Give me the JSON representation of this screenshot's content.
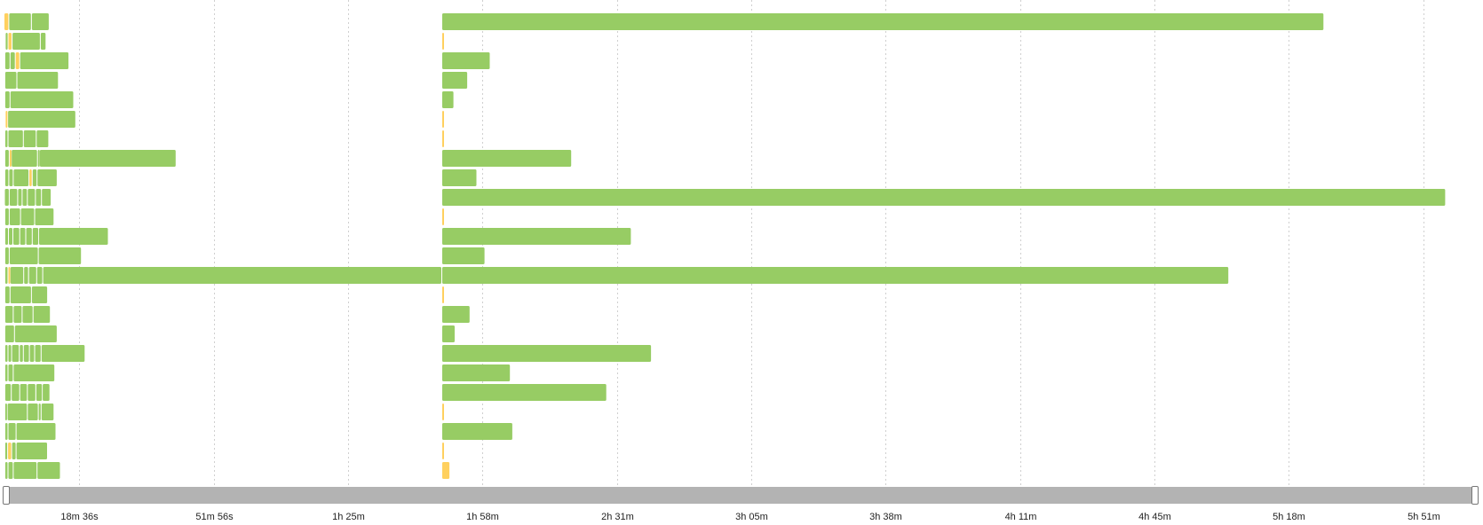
{
  "timeline": {
    "range_minutes": [
      0,
      365
    ],
    "colors": {
      "running": "#97cc64",
      "pending": "#ffd05e",
      "scrollbar": "#b3b3b3",
      "gridline": "#cfcfcf"
    },
    "ticks": [
      {
        "label": "18m 36s",
        "minutes": 18.6
      },
      {
        "label": "51m 56s",
        "minutes": 51.93
      },
      {
        "label": "1h 25m",
        "minutes": 85.27
      },
      {
        "label": "1h 58m",
        "minutes": 118.6
      },
      {
        "label": "2h 31m",
        "minutes": 151.93
      },
      {
        "label": "3h 05m",
        "minutes": 185.27
      },
      {
        "label": "3h 38m",
        "minutes": 218.6
      },
      {
        "label": "4h 11m",
        "minutes": 251.93
      },
      {
        "label": "4h 45m",
        "minutes": 285.27
      },
      {
        "label": "5h 18m",
        "minutes": 318.6
      },
      {
        "label": "5h 51m",
        "minutes": 351.93
      }
    ],
    "rows": [
      {
        "segments": [
          {
            "s": 0,
            "e": 1.2,
            "t": "pending"
          },
          {
            "s": 1.2,
            "e": 6.8,
            "t": "running"
          },
          {
            "s": 6.8,
            "e": 11.2,
            "t": "running"
          },
          {
            "s": 108.6,
            "e": 327.4,
            "t": "running"
          }
        ]
      },
      {
        "segments": [
          {
            "s": 0.3,
            "e": 1.0,
            "t": "running"
          },
          {
            "s": 1.0,
            "e": 2.0,
            "t": "pending"
          },
          {
            "s": 2.0,
            "e": 9.0,
            "t": "running"
          },
          {
            "s": 9.0,
            "e": 10.4,
            "t": "running"
          },
          {
            "s": 108.6,
            "e": 109.1,
            "t": "pending"
          }
        ]
      },
      {
        "segments": [
          {
            "s": 0.2,
            "e": 1.5,
            "t": "running"
          },
          {
            "s": 1.5,
            "e": 2.8,
            "t": "running"
          },
          {
            "s": 2.8,
            "e": 3.9,
            "t": "pending"
          },
          {
            "s": 3.9,
            "e": 16.1,
            "t": "running"
          },
          {
            "s": 108.6,
            "e": 120.6,
            "t": "running"
          }
        ]
      },
      {
        "segments": [
          {
            "s": 0.2,
            "e": 3.2,
            "t": "running"
          },
          {
            "s": 3.2,
            "e": 13.5,
            "t": "running"
          },
          {
            "s": 108.6,
            "e": 115.0,
            "t": "running"
          }
        ]
      },
      {
        "segments": [
          {
            "s": 0.2,
            "e": 1.5,
            "t": "running"
          },
          {
            "s": 1.5,
            "e": 17.3,
            "t": "running"
          },
          {
            "s": 108.6,
            "e": 111.6,
            "t": "running"
          }
        ]
      },
      {
        "segments": [
          {
            "s": 0.3,
            "e": 0.9,
            "t": "pending"
          },
          {
            "s": 0.9,
            "e": 17.8,
            "t": "running"
          },
          {
            "s": 108.6,
            "e": 109.1,
            "t": "pending"
          }
        ]
      },
      {
        "segments": [
          {
            "s": 0.2,
            "e": 1.0,
            "t": "running"
          },
          {
            "s": 1.0,
            "e": 4.8,
            "t": "running"
          },
          {
            "s": 4.8,
            "e": 8.0,
            "t": "running"
          },
          {
            "s": 8.0,
            "e": 11.1,
            "t": "running"
          },
          {
            "s": 108.6,
            "e": 109.1,
            "t": "pending"
          }
        ]
      },
      {
        "segments": [
          {
            "s": 0.2,
            "e": 1.3,
            "t": "running"
          },
          {
            "s": 1.3,
            "e": 1.8,
            "t": "pending"
          },
          {
            "s": 1.8,
            "e": 8.3,
            "t": "running"
          },
          {
            "s": 8.3,
            "e": 8.8,
            "t": "running"
          },
          {
            "s": 8.8,
            "e": 42.7,
            "t": "running"
          },
          {
            "s": 108.6,
            "e": 140.8,
            "t": "running"
          }
        ]
      },
      {
        "segments": [
          {
            "s": 0.2,
            "e": 1.2,
            "t": "running"
          },
          {
            "s": 1.2,
            "e": 2.3,
            "t": "running"
          },
          {
            "s": 2.3,
            "e": 6.2,
            "t": "running"
          },
          {
            "s": 6.2,
            "e": 7.0,
            "t": "pending"
          },
          {
            "s": 7.0,
            "e": 8.2,
            "t": "running"
          },
          {
            "s": 8.2,
            "e": 13.2,
            "t": "running"
          },
          {
            "s": 108.6,
            "e": 117.3,
            "t": "running"
          }
        ]
      },
      {
        "segments": [
          {
            "s": 0.1,
            "e": 1.3,
            "t": "running"
          },
          {
            "s": 1.3,
            "e": 3.4,
            "t": "running"
          },
          {
            "s": 3.4,
            "e": 4.5,
            "t": "running"
          },
          {
            "s": 4.5,
            "e": 5.8,
            "t": "running"
          },
          {
            "s": 5.8,
            "e": 7.8,
            "t": "running"
          },
          {
            "s": 7.8,
            "e": 9.3,
            "t": "running"
          },
          {
            "s": 9.3,
            "e": 11.7,
            "t": "running"
          },
          {
            "s": 108.6,
            "e": 357.6,
            "t": "running"
          }
        ]
      },
      {
        "segments": [
          {
            "s": 0.2,
            "e": 1.3,
            "t": "running"
          },
          {
            "s": 1.3,
            "e": 4.1,
            "t": "running"
          },
          {
            "s": 4.1,
            "e": 7.6,
            "t": "running"
          },
          {
            "s": 7.6,
            "e": 12.4,
            "t": "running"
          },
          {
            "s": 108.6,
            "e": 109.1,
            "t": "pending"
          }
        ]
      },
      {
        "segments": [
          {
            "s": 0.2,
            "e": 1.1,
            "t": "running"
          },
          {
            "s": 1.1,
            "e": 2.2,
            "t": "running"
          },
          {
            "s": 2.2,
            "e": 3.9,
            "t": "running"
          },
          {
            "s": 3.9,
            "e": 5.4,
            "t": "running"
          },
          {
            "s": 5.4,
            "e": 7.0,
            "t": "running"
          },
          {
            "s": 7.0,
            "e": 8.6,
            "t": "running"
          },
          {
            "s": 8.6,
            "e": 25.9,
            "t": "running"
          },
          {
            "s": 108.6,
            "e": 155.6,
            "t": "running"
          }
        ]
      },
      {
        "segments": [
          {
            "s": 0.2,
            "e": 1.3,
            "t": "running"
          },
          {
            "s": 1.3,
            "e": 8.5,
            "t": "running"
          },
          {
            "s": 8.5,
            "e": 19.2,
            "t": "running"
          },
          {
            "s": 108.6,
            "e": 119.3,
            "t": "running"
          }
        ]
      },
      {
        "segments": [
          {
            "s": 0.2,
            "e": 1.0,
            "t": "running"
          },
          {
            "s": 1.0,
            "e": 1.5,
            "t": "pending"
          },
          {
            "s": 1.5,
            "e": 4.9,
            "t": "running"
          },
          {
            "s": 4.9,
            "e": 6.1,
            "t": "running"
          },
          {
            "s": 6.1,
            "e": 8.1,
            "t": "running"
          },
          {
            "s": 8.1,
            "e": 9.6,
            "t": "running"
          },
          {
            "s": 9.6,
            "e": 108.6,
            "t": "running"
          },
          {
            "s": 108.6,
            "e": 303.8,
            "t": "running"
          }
        ]
      },
      {
        "segments": [
          {
            "s": 0.2,
            "e": 1.5,
            "t": "running"
          },
          {
            "s": 1.5,
            "e": 6.8,
            "t": "running"
          },
          {
            "s": 6.8,
            "e": 10.8,
            "t": "running"
          },
          {
            "s": 108.6,
            "e": 109.1,
            "t": "pending"
          }
        ]
      },
      {
        "segments": [
          {
            "s": 0.2,
            "e": 2.3,
            "t": "running"
          },
          {
            "s": 2.3,
            "e": 4.5,
            "t": "running"
          },
          {
            "s": 4.5,
            "e": 7.2,
            "t": "running"
          },
          {
            "s": 7.2,
            "e": 11.5,
            "t": "running"
          },
          {
            "s": 108.6,
            "e": 115.6,
            "t": "running"
          }
        ]
      },
      {
        "segments": [
          {
            "s": 0.2,
            "e": 2.6,
            "t": "running"
          },
          {
            "s": 2.6,
            "e": 13.2,
            "t": "running"
          },
          {
            "s": 108.6,
            "e": 111.9,
            "t": "running"
          }
        ]
      },
      {
        "segments": [
          {
            "s": 0.2,
            "e": 1.0,
            "t": "running"
          },
          {
            "s": 1.0,
            "e": 1.9,
            "t": "running"
          },
          {
            "s": 1.9,
            "e": 3.8,
            "t": "running"
          },
          {
            "s": 3.8,
            "e": 4.8,
            "t": "running"
          },
          {
            "s": 4.8,
            "e": 6.3,
            "t": "running"
          },
          {
            "s": 6.3,
            "e": 7.6,
            "t": "running"
          },
          {
            "s": 7.6,
            "e": 9.2,
            "t": "running"
          },
          {
            "s": 9.2,
            "e": 20.1,
            "t": "running"
          },
          {
            "s": 108.6,
            "e": 160.6,
            "t": "running"
          }
        ]
      },
      {
        "segments": [
          {
            "s": 0.2,
            "e": 1.0,
            "t": "running"
          },
          {
            "s": 1.0,
            "e": 2.3,
            "t": "running"
          },
          {
            "s": 2.3,
            "e": 12.6,
            "t": "running"
          },
          {
            "s": 108.6,
            "e": 125.6,
            "t": "running"
          }
        ]
      },
      {
        "segments": [
          {
            "s": 0.2,
            "e": 1.8,
            "t": "running"
          },
          {
            "s": 1.8,
            "e": 3.9,
            "t": "running"
          },
          {
            "s": 3.9,
            "e": 5.8,
            "t": "running"
          },
          {
            "s": 5.8,
            "e": 7.9,
            "t": "running"
          },
          {
            "s": 7.9,
            "e": 9.5,
            "t": "running"
          },
          {
            "s": 9.5,
            "e": 11.4,
            "t": "running"
          },
          {
            "s": 108.6,
            "e": 149.5,
            "t": "running"
          }
        ]
      },
      {
        "segments": [
          {
            "s": 0.2,
            "e": 0.8,
            "t": "running"
          },
          {
            "s": 0.8,
            "e": 5.8,
            "t": "running"
          },
          {
            "s": 5.8,
            "e": 8.5,
            "t": "running"
          },
          {
            "s": 8.5,
            "e": 9.2,
            "t": "running"
          },
          {
            "s": 9.2,
            "e": 12.4,
            "t": "running"
          },
          {
            "s": 108.6,
            "e": 109.1,
            "t": "pending"
          }
        ]
      },
      {
        "segments": [
          {
            "s": 0.2,
            "e": 1.0,
            "t": "running"
          },
          {
            "s": 1.0,
            "e": 3.0,
            "t": "running"
          },
          {
            "s": 3.0,
            "e": 12.9,
            "t": "running"
          },
          {
            "s": 108.6,
            "e": 126.2,
            "t": "running"
          }
        ]
      },
      {
        "segments": [
          {
            "s": 0.2,
            "e": 0.9,
            "t": "running"
          },
          {
            "s": 0.9,
            "e": 1.9,
            "t": "pending"
          },
          {
            "s": 1.9,
            "e": 3.0,
            "t": "running"
          },
          {
            "s": 3.0,
            "e": 10.8,
            "t": "running"
          },
          {
            "s": 108.6,
            "e": 109.1,
            "t": "pending"
          }
        ]
      },
      {
        "segments": [
          {
            "s": 0.2,
            "e": 1.0,
            "t": "running"
          },
          {
            "s": 1.0,
            "e": 2.3,
            "t": "running"
          },
          {
            "s": 2.3,
            "e": 8.2,
            "t": "running"
          },
          {
            "s": 8.2,
            "e": 14.0,
            "t": "running"
          },
          {
            "s": 108.6,
            "e": 110.6,
            "t": "pending"
          }
        ]
      }
    ],
    "scrollbar": {
      "window_fraction": [
        0,
        1
      ]
    }
  }
}
